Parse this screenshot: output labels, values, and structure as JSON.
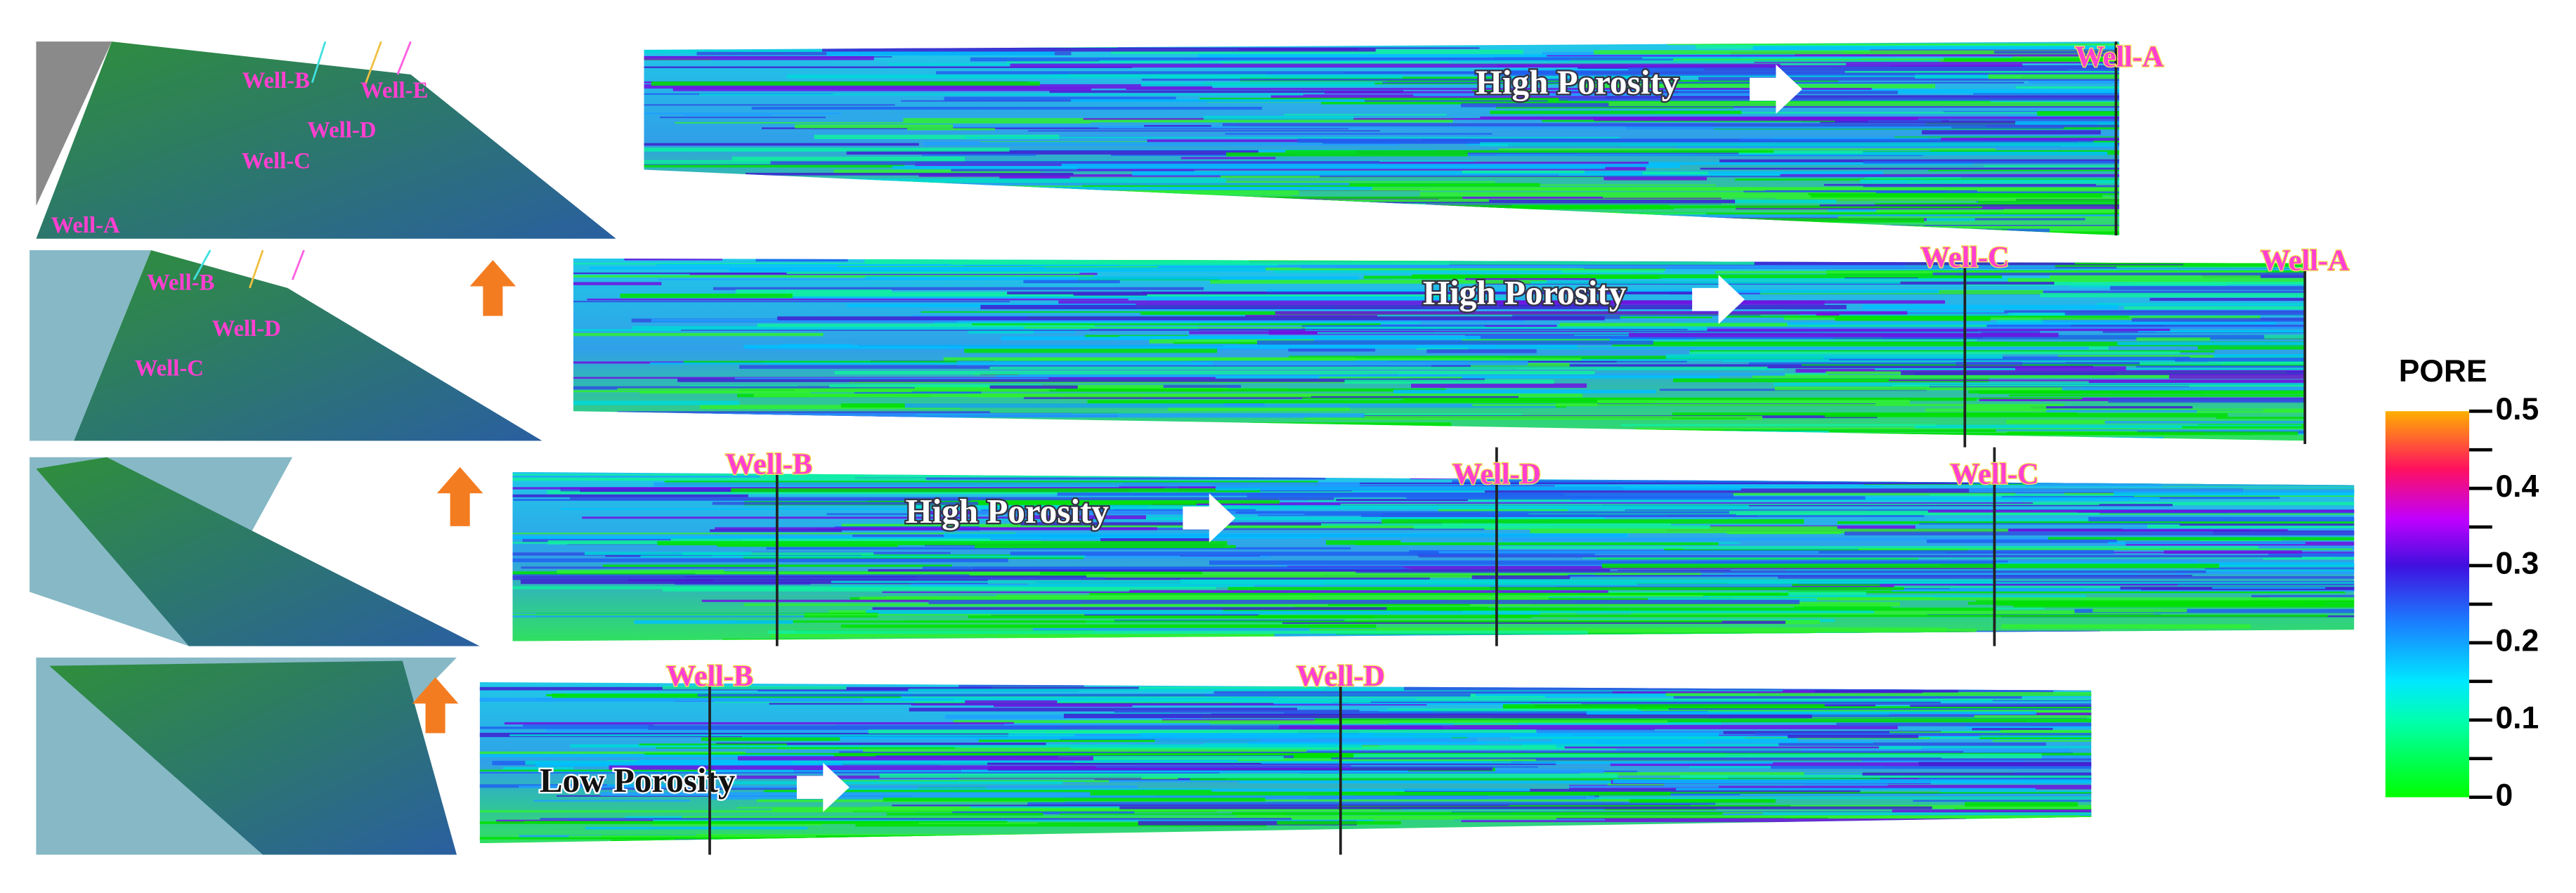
{
  "thumbnails": [
    {
      "wells": [
        "Well-B",
        "Well-E",
        "Well-D",
        "Well-C",
        "Well-A"
      ]
    },
    {
      "wells": [
        "Well-B",
        "Well-D",
        "Well-C"
      ]
    }
  ],
  "sections": [
    {
      "label": "High Porosity",
      "wells": [
        "Well-A"
      ]
    },
    {
      "label": "High Porosity",
      "wells": [
        "Well-C",
        "Well-A"
      ]
    },
    {
      "label": "High Porosity",
      "wells": [
        "Well-B",
        "Well-D",
        "Well-C"
      ]
    },
    {
      "label": "Low Porosity",
      "wells": [
        "Well-B",
        "Well-D"
      ]
    }
  ],
  "colorbar": {
    "title": "PORE",
    "lim": [
      0,
      0.5
    ],
    "ticks": [
      0.5,
      0.4,
      0.3,
      0.2,
      0.1,
      0
    ]
  }
}
